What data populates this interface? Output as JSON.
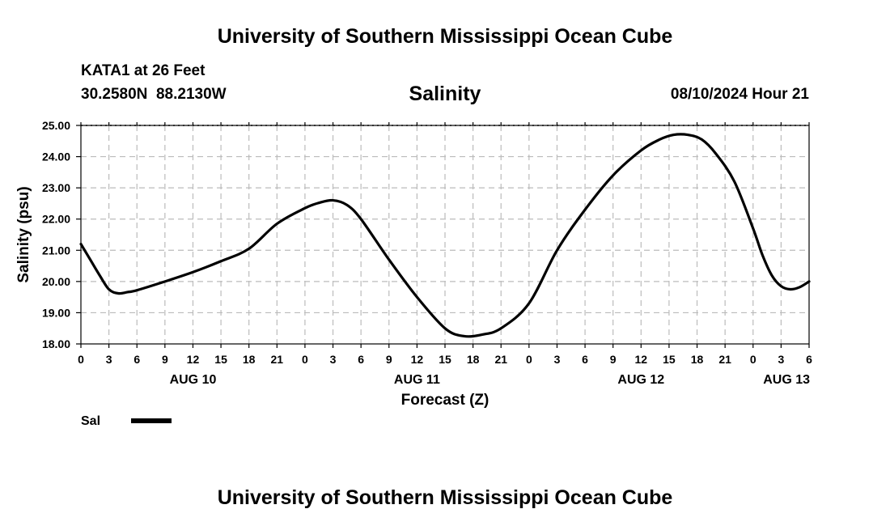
{
  "header": {
    "title": "University of Southern Mississippi Ocean Cube",
    "station": "KATA1 at 26 Feet",
    "coords": "30.2580N  88.2130W",
    "datetime": "08/10/2024 Hour 21"
  },
  "footer": {
    "title": "University of Southern Mississippi Ocean Cube"
  },
  "legend": {
    "label": "Sal"
  },
  "colors": {
    "line": "#000000",
    "grid": "#bbbbbb"
  },
  "chart_data": {
    "type": "line",
    "title": "Salinity",
    "xlabel": "Forecast (Z)",
    "ylabel": "Salinity (psu)",
    "ylim": [
      18,
      25
    ],
    "xlim": [
      0,
      78
    ],
    "grid": true,
    "y_ticks": [
      "18.00",
      "19.00",
      "20.00",
      "21.00",
      "22.00",
      "23.00",
      "24.00",
      "25.00"
    ],
    "x_ticks": [
      "0",
      "3",
      "6",
      "9",
      "12",
      "15",
      "18",
      "21",
      "0",
      "3",
      "6",
      "9",
      "12",
      "15",
      "18",
      "21",
      "0",
      "3",
      "6",
      "9",
      "12",
      "15",
      "18",
      "21",
      "0",
      "3",
      "6"
    ],
    "day_labels": [
      {
        "label": "AUG 10",
        "hour": 12
      },
      {
        "label": "AUG 11",
        "hour": 36
      },
      {
        "label": "AUG 12",
        "hour": 60
      },
      {
        "label": "AUG 13",
        "hour": 78
      }
    ],
    "series": [
      {
        "name": "Sal",
        "x": [
          0,
          1,
          2,
          3,
          4,
          5,
          6,
          9,
          12,
          15,
          18,
          21,
          24,
          25.5,
          27,
          28.5,
          30,
          33,
          36,
          39,
          41,
          43,
          45,
          48,
          51,
          54,
          57,
          60,
          62,
          63.5,
          65,
          66.5,
          68,
          70,
          72,
          73,
          74,
          75,
          76,
          77,
          78
        ],
        "y": [
          21.2,
          20.7,
          20.2,
          19.75,
          19.62,
          19.66,
          19.72,
          20.0,
          20.3,
          20.65,
          21.05,
          21.85,
          22.35,
          22.52,
          22.6,
          22.45,
          22.0,
          20.7,
          19.5,
          18.5,
          18.25,
          18.3,
          18.5,
          19.3,
          21.0,
          22.3,
          23.4,
          24.2,
          24.55,
          24.7,
          24.7,
          24.55,
          24.1,
          23.2,
          21.7,
          20.85,
          20.2,
          19.85,
          19.75,
          19.82,
          20.0
        ]
      }
    ]
  }
}
